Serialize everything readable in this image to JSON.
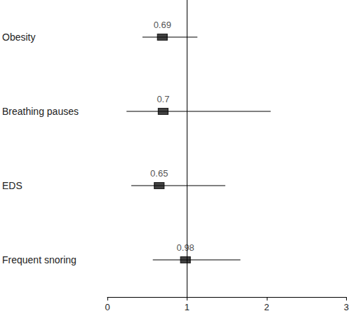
{
  "chart_data": {
    "type": "forest",
    "categories": [
      "Obesity",
      "Breathing pauses",
      "EDS",
      "Frequent snoring"
    ],
    "values": [
      0.69,
      0.7,
      0.65,
      0.98
    ],
    "ci_lower": [
      0.44,
      0.24,
      0.3,
      0.57
    ],
    "ci_upper": [
      1.13,
      2.05,
      1.48,
      1.67
    ],
    "reference_line": 1,
    "xlim": [
      0,
      3
    ],
    "xticks": [
      0,
      1,
      2,
      3
    ],
    "color": "#000000",
    "marker": "square",
    "data_labels": true,
    "grid": false
  }
}
